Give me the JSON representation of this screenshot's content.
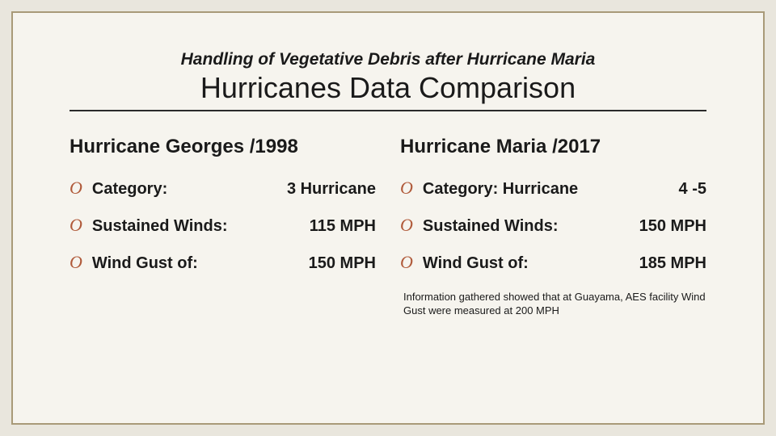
{
  "colors": {
    "page_bg": "#e9e6dd",
    "slide_bg": "#f6f4ee",
    "slide_border": "#a89a78",
    "text": "#1a1a1a",
    "bullet": "#b05a3a",
    "rule": "#2a2a2a"
  },
  "typography": {
    "pretitle_fontsize": 21,
    "title_fontsize": 36,
    "col_heading_fontsize": 24,
    "item_fontsize": 20,
    "footnote_fontsize": 13
  },
  "header": {
    "pretitle": "Handling of Vegetative Debris after Hurricane Maria",
    "title": "Hurricanes Data Comparison"
  },
  "left": {
    "heading": "Hurricane Georges /1998",
    "items": [
      {
        "label": "Category:",
        "value": "3 Hurricane"
      },
      {
        "label": "Sustained Winds:",
        "value": "115 MPH"
      },
      {
        "label": "Wind Gust of:",
        "value": "150 MPH"
      }
    ]
  },
  "right": {
    "heading": "Hurricane Maria /2017",
    "items": [
      {
        "label": "Category: Hurricane",
        "value": "4 -5"
      },
      {
        "label": "Sustained Winds:",
        "value": "150 MPH"
      },
      {
        "label": "Wind Gust of:",
        "value": "185 MPH"
      }
    ],
    "footnote": "Information gathered showed that at Guayama, AES facility Wind Gust were measured at 200 MPH"
  }
}
